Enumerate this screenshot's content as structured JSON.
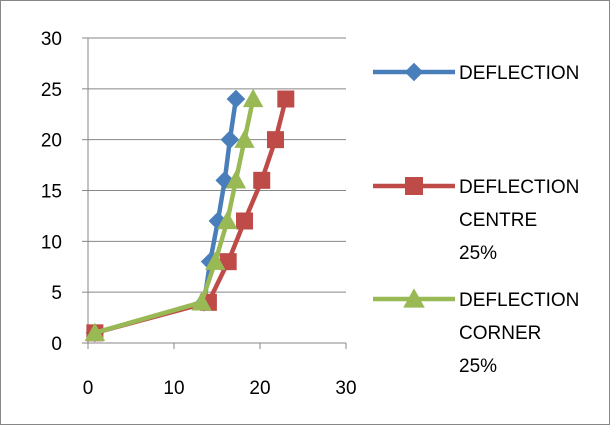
{
  "chart_data": {
    "type": "scatter",
    "title": "",
    "xlabel": "",
    "ylabel": "",
    "xlim": [
      0,
      30
    ],
    "ylim": [
      0,
      30
    ],
    "xticks": [
      "0",
      "10",
      "20",
      "30"
    ],
    "yticks": [
      "0",
      "5",
      "10",
      "15",
      "20",
      "25",
      "30"
    ],
    "grid": "horizontal major",
    "legend_position": "right",
    "lines_connected": true,
    "series": [
      {
        "legend_lines": [
          "DEFLECTION"
        ],
        "color": "#4A7EBB",
        "marker": "diamond",
        "x": [
          0.8,
          13.5,
          14.2,
          15.1,
          15.9,
          16.5,
          17.2
        ],
        "y": [
          1,
          4,
          8,
          12,
          16,
          20,
          24
        ]
      },
      {
        "legend_lines": [
          "DEFLECTION",
          "CENTRE",
          "25%"
        ],
        "color": "#BE4B48",
        "marker": "square",
        "x": [
          0.8,
          14.0,
          16.3,
          18.2,
          20.2,
          21.8,
          23.0
        ],
        "y": [
          1,
          4,
          8,
          12,
          16,
          20,
          24
        ]
      },
      {
        "legend_lines": [
          "DEFLECTION",
          "CORNER",
          "25%"
        ],
        "color": "#98B954",
        "marker": "triangle",
        "x": [
          0.8,
          13.2,
          14.8,
          16.2,
          17.2,
          18.2,
          19.2
        ],
        "y": [
          1,
          4,
          8,
          12,
          16,
          20,
          24
        ]
      }
    ]
  }
}
